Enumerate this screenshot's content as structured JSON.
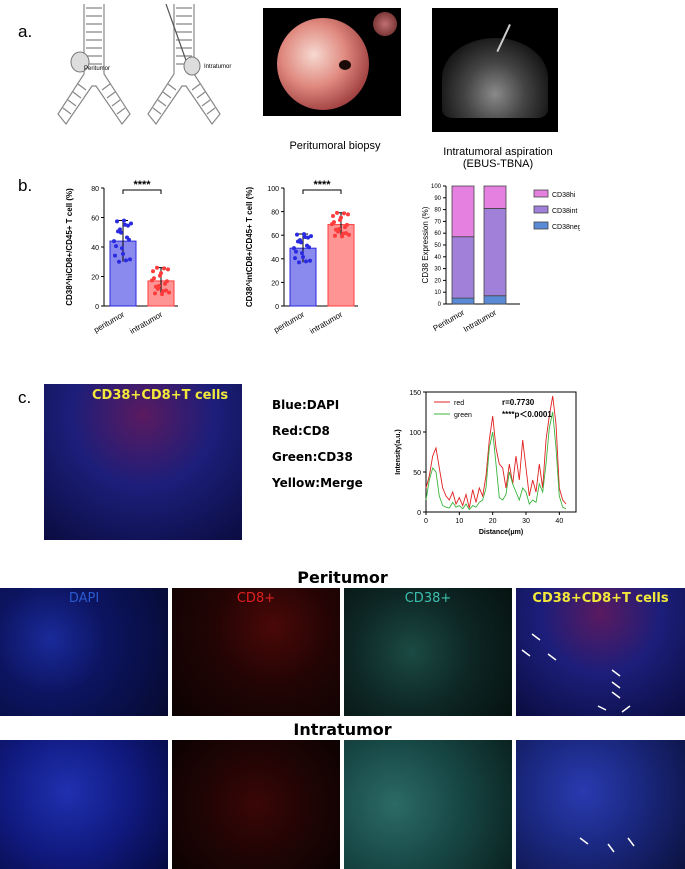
{
  "panel_a": {
    "label": "a.",
    "diagram_left_label": "Peritumor",
    "diagram_right_label": "Intratumor",
    "caption_biopsy": "Peritumoral biopsy",
    "caption_aspiration_line1": "Intratumoral aspiration",
    "caption_aspiration_line2": "(EBUS-TBNA)"
  },
  "panel_b": {
    "label": "b.",
    "significance": "****"
  },
  "panel_c": {
    "label": "c.",
    "image_title": "CD38+CD8+T cells",
    "legend": [
      "Blue:DAPI",
      "Red:CD8",
      "Green:CD38",
      "Yellow:Merge"
    ]
  },
  "panel_d": {
    "row1_title": "Peritumor",
    "row2_title": "Intratumor",
    "channels": [
      "DAPI",
      "CD8+",
      "CD38+",
      "CD38+CD8+T cells"
    ]
  },
  "colors": {
    "blue_bar": "#2a2ae0",
    "red_bar": "#ff3c3c",
    "cd38hi": "#e680e0",
    "cd38int": "#a080d8",
    "cd38neg": "#5a8ad6",
    "line_red": "#e02020",
    "line_green": "#3cb43c"
  },
  "chart_data": [
    {
      "type": "bar",
      "ylabel": "CD38^hiCD8+/CD45+ T cell (%)",
      "categories": [
        "peritumor",
        "intratumor"
      ],
      "values": [
        44,
        17
      ],
      "errors": [
        14,
        9
      ],
      "ylim": [
        0,
        80
      ],
      "yticks": [
        0,
        20,
        40,
        60,
        80
      ],
      "significance": "****"
    },
    {
      "type": "bar",
      "ylabel": "CD38^intCD8+/CD45+ T cell (%)",
      "categories": [
        "peritumor",
        "intratumor"
      ],
      "values": [
        49,
        69
      ],
      "errors": [
        12,
        10
      ],
      "ylim": [
        0,
        100
      ],
      "yticks": [
        0,
        20,
        40,
        60,
        80,
        100
      ],
      "significance": "****"
    },
    {
      "type": "bar",
      "stacked": true,
      "ylabel": "CD38 Expression (%)",
      "categories": [
        "Peritumor",
        "Intratumor"
      ],
      "series": [
        {
          "name": "CD38neg",
          "values": [
            5,
            7
          ]
        },
        {
          "name": "CD38int",
          "values": [
            52,
            74
          ]
        },
        {
          "name": "CD38hi",
          "values": [
            43,
            19
          ]
        }
      ],
      "ylim": [
        0,
        100
      ],
      "yticks": [
        0,
        10,
        20,
        30,
        40,
        50,
        60,
        70,
        80,
        90,
        100
      ]
    },
    {
      "type": "line",
      "xlabel": "Distance(μm)",
      "ylabel": "Intensity(a.u.)",
      "xlim": [
        0,
        45
      ],
      "ylim": [
        0,
        150
      ],
      "xticks": [
        0,
        10,
        20,
        30,
        40
      ],
      "yticks": [
        0,
        50,
        100,
        150
      ],
      "annotation_r": "r=0.7730",
      "annotation_p": "****p＜0.0001",
      "series": [
        {
          "name": "red",
          "x": [
            0,
            1,
            2,
            3,
            4,
            5,
            6,
            7,
            8,
            9,
            10,
            11,
            12,
            13,
            14,
            15,
            16,
            17,
            18,
            19,
            20,
            21,
            22,
            23,
            24,
            25,
            26,
            27,
            28,
            29,
            30,
            31,
            32,
            33,
            34,
            35,
            36,
            37,
            38,
            39,
            40,
            41,
            42
          ],
          "values": [
            30,
            45,
            70,
            80,
            55,
            30,
            20,
            15,
            25,
            10,
            18,
            8,
            22,
            5,
            28,
            12,
            30,
            20,
            45,
            90,
            120,
            80,
            60,
            55,
            30,
            60,
            35,
            70,
            40,
            90,
            55,
            20,
            40,
            25,
            60,
            30,
            90,
            120,
            145,
            110,
            30,
            15,
            10
          ]
        },
        {
          "name": "green",
          "x": [
            0,
            1,
            2,
            3,
            4,
            5,
            6,
            7,
            8,
            9,
            10,
            11,
            12,
            13,
            14,
            15,
            16,
            17,
            18,
            19,
            20,
            21,
            22,
            23,
            24,
            25,
            26,
            27,
            28,
            29,
            30,
            31,
            32,
            33,
            34,
            35,
            36,
            37,
            38,
            39,
            40,
            41,
            42
          ],
          "values": [
            15,
            40,
            55,
            50,
            20,
            8,
            6,
            5,
            12,
            6,
            8,
            4,
            10,
            3,
            8,
            6,
            12,
            15,
            30,
            80,
            100,
            60,
            18,
            15,
            22,
            50,
            35,
            25,
            15,
            30,
            25,
            10,
            15,
            12,
            35,
            25,
            60,
            105,
            125,
            80,
            20,
            6,
            4
          ]
        }
      ]
    }
  ]
}
